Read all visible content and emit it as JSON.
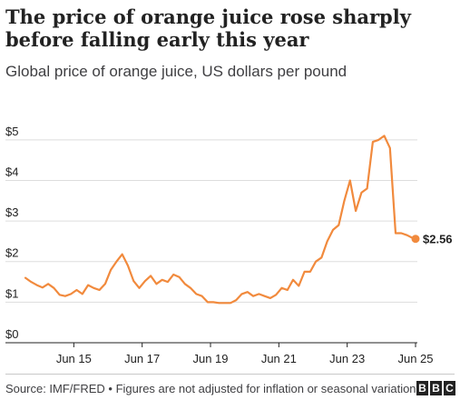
{
  "title": "The price of orange juice rose sharply before falling early this year",
  "subtitle": "Global price of orange juice, US dollars per pound",
  "source": "Source: IMF/FRED • Figures are not adjusted for inflation or seasonal variation",
  "logo_text": "BBC",
  "colors": {
    "line": "#f18a3d",
    "grid": "#dddddd",
    "axis": "#222222",
    "text": "#222222"
  },
  "chart_data": {
    "type": "line",
    "title": "The price of orange juice rose sharply before falling early this year",
    "subtitle": "Global price of orange juice, US dollars per pound",
    "y_unit": "US dollars per pound",
    "ylim": [
      0,
      5.4
    ],
    "y_ticks": [
      0,
      1,
      2,
      3,
      4,
      5
    ],
    "y_tick_labels": [
      "$0",
      "$1",
      "$2",
      "$3",
      "$4",
      "$5"
    ],
    "xlim": [
      "2014-01",
      "2025-06"
    ],
    "x_ticks": [
      "2015-06",
      "2017-06",
      "2019-06",
      "2021-06",
      "2023-06",
      "2025-06"
    ],
    "x_tick_labels": [
      "Jun 15",
      "Jun 17",
      "Jun 19",
      "Jun 21",
      "Jun 23",
      "Jun 25"
    ],
    "grid": true,
    "last_value_label": "$2.56",
    "series": [
      {
        "x": [
          "2014-01",
          "2014-03",
          "2014-05",
          "2014-07",
          "2014-09",
          "2014-11",
          "2015-01",
          "2015-03",
          "2015-05",
          "2015-07",
          "2015-09",
          "2015-11",
          "2016-01",
          "2016-03",
          "2016-05",
          "2016-07",
          "2016-09",
          "2016-11",
          "2017-01",
          "2017-03",
          "2017-05",
          "2017-07",
          "2017-09",
          "2017-11",
          "2018-01",
          "2018-03",
          "2018-05",
          "2018-07",
          "2018-09",
          "2018-11",
          "2019-01",
          "2019-03",
          "2019-05",
          "2019-07",
          "2019-09",
          "2019-11",
          "2020-01",
          "2020-03",
          "2020-05",
          "2020-07",
          "2020-09",
          "2020-11",
          "2021-01",
          "2021-03",
          "2021-05",
          "2021-07",
          "2021-09",
          "2021-11",
          "2022-01",
          "2022-03",
          "2022-05",
          "2022-07",
          "2022-09",
          "2022-11",
          "2023-01",
          "2023-03",
          "2023-05",
          "2023-07",
          "2023-09",
          "2023-11",
          "2024-01",
          "2024-03",
          "2024-05",
          "2024-07",
          "2024-09",
          "2024-11",
          "2025-01",
          "2025-03",
          "2025-05",
          "2025-06"
        ],
        "values": [
          1.6,
          1.5,
          1.42,
          1.36,
          1.45,
          1.35,
          1.18,
          1.15,
          1.2,
          1.3,
          1.2,
          1.42,
          1.35,
          1.3,
          1.45,
          1.8,
          2.0,
          2.18,
          1.9,
          1.52,
          1.35,
          1.52,
          1.65,
          1.45,
          1.55,
          1.5,
          1.68,
          1.62,
          1.45,
          1.35,
          1.2,
          1.15,
          1.0,
          1.0,
          0.98,
          0.98,
          0.98,
          1.05,
          1.2,
          1.25,
          1.15,
          1.2,
          1.15,
          1.1,
          1.18,
          1.35,
          1.3,
          1.55,
          1.4,
          1.75,
          1.75,
          2.0,
          2.1,
          2.5,
          2.78,
          2.9,
          3.5,
          4.0,
          3.25,
          3.7,
          3.8,
          4.95,
          5.0,
          5.1,
          4.8,
          2.7,
          2.7,
          2.65,
          2.58,
          2.56
        ]
      }
    ]
  }
}
